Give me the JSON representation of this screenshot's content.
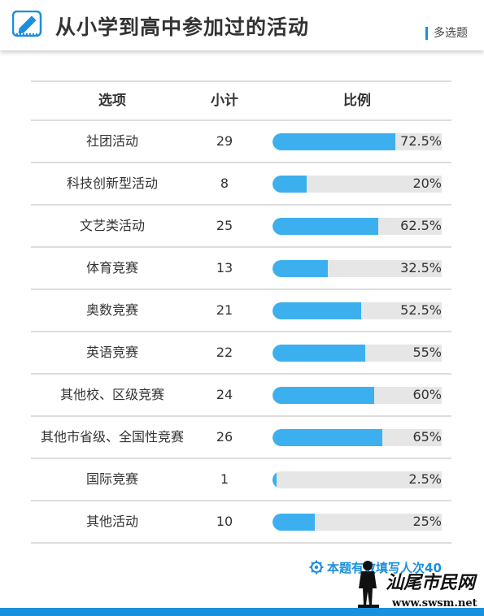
{
  "header": {
    "title": "从小学到高中参加过的活动",
    "tag": "多选题"
  },
  "table": {
    "col_option": "选项",
    "col_count": "小计",
    "col_ratio": "比例"
  },
  "footer": {
    "note": "本题有效填写人次40"
  },
  "watermark": {
    "text1": "汕尾市民网",
    "text2": "www.swsm.net"
  },
  "colors": {
    "accent": "#1a8fdc",
    "bar": "#3cb0ee",
    "bar_track": "#e6e6e6"
  },
  "chart_data": {
    "type": "table",
    "columns": [
      "选项",
      "小计",
      "比例"
    ],
    "rows": [
      {
        "option": "社团活动",
        "count": "29",
        "pct_label": "72.5%",
        "pct": 72.5
      },
      {
        "option": "科技创新型活动",
        "count": "8",
        "pct_label": "20%",
        "pct": 20
      },
      {
        "option": "文艺类活动",
        "count": "25",
        "pct_label": "62.5%",
        "pct": 62.5
      },
      {
        "option": "体育竞赛",
        "count": "13",
        "pct_label": "32.5%",
        "pct": 32.5
      },
      {
        "option": "奥数竞赛",
        "count": "21",
        "pct_label": "52.5%",
        "pct": 52.5
      },
      {
        "option": "英语竞赛",
        "count": "22",
        "pct_label": "55%",
        "pct": 55
      },
      {
        "option": "其他校、区级竞赛",
        "count": "24",
        "pct_label": "60%",
        "pct": 60
      },
      {
        "option": "其他市省级、全国性竞赛",
        "count": "26",
        "pct_label": "65%",
        "pct": 65
      },
      {
        "option": "国际竞赛",
        "count": "1",
        "pct_label": "2.5%",
        "pct": 2.5
      },
      {
        "option": "其他活动",
        "count": "10",
        "pct_label": "25%",
        "pct": 25
      }
    ],
    "pct_range": [
      0,
      100
    ]
  }
}
